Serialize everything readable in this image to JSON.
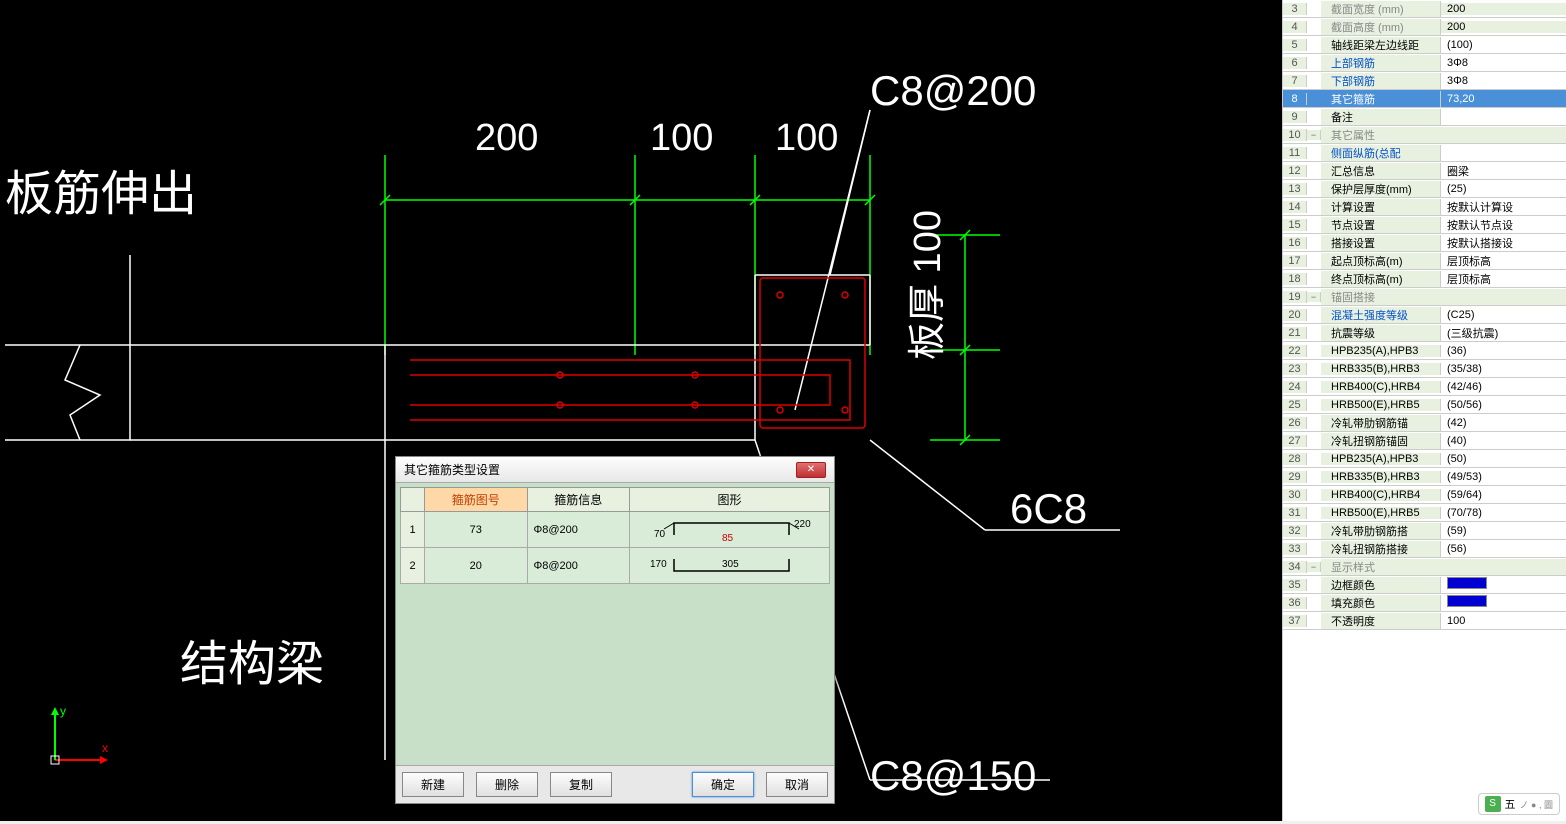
{
  "canvas": {
    "labels": {
      "c8_200": "C8@200",
      "c8_150": "C8@150",
      "six_c8": "6C8",
      "dim_200": "200",
      "dim_100a": "100",
      "dim_100b": "100",
      "slab_thick": "板厚 100",
      "rebar_extend": "板筋伸出",
      "struct_beam": "结构梁"
    },
    "axis": {
      "x_label": "x",
      "y_label": "y"
    }
  },
  "dialog": {
    "title": "其它箍筋类型设置",
    "headers": {
      "code": "箍筋图号",
      "info": "箍筋信息",
      "shape": "图形"
    },
    "rows": [
      {
        "idx": "1",
        "code": "73",
        "info": "Φ8@200",
        "d1": "70",
        "d2": "220",
        "d3": "85"
      },
      {
        "idx": "2",
        "code": "20",
        "info": "Φ8@200",
        "d1": "170",
        "d2": "305",
        "d3": ""
      }
    ],
    "buttons": {
      "new": "新建",
      "delete": "删除",
      "copy": "复制",
      "ok": "确定",
      "cancel": "取消"
    }
  },
  "props": {
    "rows": [
      {
        "n": "3",
        "label": "截面宽度 (mm)",
        "val": "200",
        "cls": "dim"
      },
      {
        "n": "4",
        "label": "截面高度 (mm)",
        "val": "200",
        "cls": "dim"
      },
      {
        "n": "5",
        "label": "轴线距梁左边线距",
        "val": "(100)",
        "cls": "editable"
      },
      {
        "n": "6",
        "label": "上部钢筋",
        "val": "3Φ8",
        "cls": "link editable"
      },
      {
        "n": "7",
        "label": "下部钢筋",
        "val": "3Φ8",
        "cls": "link editable"
      },
      {
        "n": "8",
        "label": "其它箍筋",
        "val": "73,20",
        "cls": "link selected"
      },
      {
        "n": "9",
        "label": "备注",
        "val": "",
        "cls": "editable"
      },
      {
        "n": "10",
        "label": "其它属性",
        "val": "",
        "cls": "group",
        "toggle": "−"
      },
      {
        "n": "11",
        "label": "侧面纵筋(总配",
        "val": "",
        "cls": "link editable"
      },
      {
        "n": "12",
        "label": "汇总信息",
        "val": "圈梁",
        "cls": "editable"
      },
      {
        "n": "13",
        "label": "保护层厚度(mm)",
        "val": "(25)",
        "cls": "editable"
      },
      {
        "n": "14",
        "label": "计算设置",
        "val": "按默认计算设",
        "cls": "editable"
      },
      {
        "n": "15",
        "label": "节点设置",
        "val": "按默认节点设",
        "cls": "editable"
      },
      {
        "n": "16",
        "label": "搭接设置",
        "val": "按默认搭接设",
        "cls": "editable"
      },
      {
        "n": "17",
        "label": "起点顶标高(m)",
        "val": "层顶标高",
        "cls": "editable"
      },
      {
        "n": "18",
        "label": "终点顶标高(m)",
        "val": "层顶标高",
        "cls": "editable"
      },
      {
        "n": "19",
        "label": "锚固搭接",
        "val": "",
        "cls": "group",
        "toggle": "−"
      },
      {
        "n": "20",
        "label": "混凝土强度等级",
        "val": "(C25)",
        "cls": "link editable"
      },
      {
        "n": "21",
        "label": "抗震等级",
        "val": "(三级抗震)",
        "cls": "editable"
      },
      {
        "n": "22",
        "label": "HPB235(A),HPB3",
        "val": "(36)",
        "cls": "editable"
      },
      {
        "n": "23",
        "label": "HRB335(B),HRB3",
        "val": "(35/38)",
        "cls": "editable"
      },
      {
        "n": "24",
        "label": "HRB400(C),HRB4",
        "val": "(42/46)",
        "cls": "editable"
      },
      {
        "n": "25",
        "label": "HRB500(E),HRB5",
        "val": "(50/56)",
        "cls": "editable"
      },
      {
        "n": "26",
        "label": "冷轧带肋钢筋锚",
        "val": "(42)",
        "cls": "editable"
      },
      {
        "n": "27",
        "label": "冷轧扭钢筋锚固",
        "val": "(40)",
        "cls": "editable"
      },
      {
        "n": "28",
        "label": "HPB235(A),HPB3",
        "val": "(50)",
        "cls": "editable"
      },
      {
        "n": "29",
        "label": "HRB335(B),HRB3",
        "val": "(49/53)",
        "cls": "editable"
      },
      {
        "n": "30",
        "label": "HRB400(C),HRB4",
        "val": "(59/64)",
        "cls": "editable"
      },
      {
        "n": "31",
        "label": "HRB500(E),HRB5",
        "val": "(70/78)",
        "cls": "editable"
      },
      {
        "n": "32",
        "label": "冷轧带肋钢筋搭",
        "val": "(59)",
        "cls": "editable"
      },
      {
        "n": "33",
        "label": "冷轧扭钢筋搭接",
        "val": "(56)",
        "cls": "editable"
      },
      {
        "n": "34",
        "label": "显示样式",
        "val": "",
        "cls": "group",
        "toggle": "−"
      },
      {
        "n": "35",
        "label": "边框颜色",
        "val": "__SWATCH__",
        "cls": "editable"
      },
      {
        "n": "36",
        "label": "填充颜色",
        "val": "__SWATCH__",
        "cls": "editable"
      },
      {
        "n": "37",
        "label": "不透明度",
        "val": "100",
        "cls": "editable"
      }
    ]
  },
  "ime": {
    "label": "五",
    "icons": "ノ ● , 圖"
  }
}
